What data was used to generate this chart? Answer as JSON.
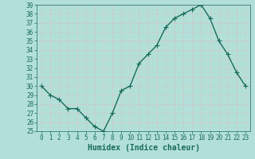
{
  "x": [
    0,
    1,
    2,
    3,
    4,
    5,
    6,
    7,
    8,
    9,
    10,
    11,
    12,
    13,
    14,
    15,
    16,
    17,
    18,
    19,
    20,
    21,
    22,
    23
  ],
  "y": [
    30,
    29,
    28.5,
    27.5,
    27.5,
    26.5,
    25.5,
    25,
    27,
    29.5,
    30,
    32.5,
    33.5,
    34.5,
    36.5,
    37.5,
    38,
    38.5,
    39,
    37.5,
    35,
    33.5,
    31.5,
    30
  ],
  "xlabel": "Humidex (Indice chaleur)",
  "xlim": [
    -0.5,
    23.5
  ],
  "ylim": [
    25,
    39
  ],
  "yticks": [
    25,
    26,
    27,
    28,
    29,
    30,
    31,
    32,
    33,
    34,
    35,
    36,
    37,
    38,
    39
  ],
  "xticks": [
    0,
    1,
    2,
    3,
    4,
    5,
    6,
    7,
    8,
    9,
    10,
    11,
    12,
    13,
    14,
    15,
    16,
    17,
    18,
    19,
    20,
    21,
    22,
    23
  ],
  "line_color": "#1a6b5a",
  "bg_color": "#b2e0d8",
  "grid_color": "#c8ddd8",
  "xlabel_color": "#1a6b5a",
  "tick_color": "#1a6b5a",
  "line_width": 1.0,
  "marker_size": 4,
  "xlabel_fontsize": 7,
  "tick_fontsize": 5.5
}
